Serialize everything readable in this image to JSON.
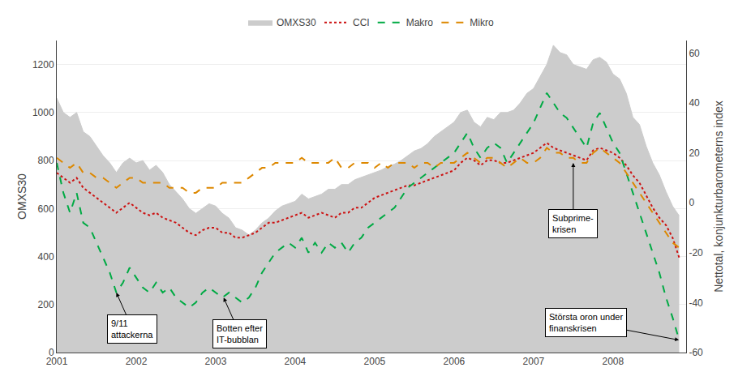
{
  "chart_data": {
    "type": "line",
    "x": [
      2001.0,
      2001.083,
      2001.167,
      2001.25,
      2001.333,
      2001.417,
      2001.5,
      2001.583,
      2001.667,
      2001.75,
      2001.833,
      2001.917,
      2002.0,
      2002.083,
      2002.167,
      2002.25,
      2002.333,
      2002.417,
      2002.5,
      2002.583,
      2002.667,
      2002.75,
      2002.833,
      2002.917,
      2003.0,
      2003.083,
      2003.167,
      2003.25,
      2003.333,
      2003.417,
      2003.5,
      2003.583,
      2003.667,
      2003.75,
      2003.833,
      2003.917,
      2004.0,
      2004.083,
      2004.167,
      2004.25,
      2004.333,
      2004.417,
      2004.5,
      2004.583,
      2004.667,
      2004.75,
      2004.833,
      2004.917,
      2005.0,
      2005.083,
      2005.167,
      2005.25,
      2005.333,
      2005.417,
      2005.5,
      2005.583,
      2005.667,
      2005.75,
      2005.833,
      2005.917,
      2006.0,
      2006.083,
      2006.167,
      2006.25,
      2006.333,
      2006.417,
      2006.5,
      2006.583,
      2006.667,
      2006.75,
      2006.833,
      2006.917,
      2007.0,
      2007.083,
      2007.167,
      2007.25,
      2007.333,
      2007.417,
      2007.5,
      2007.583,
      2007.667,
      2007.75,
      2007.833,
      2007.917,
      2008.0,
      2008.083,
      2008.167,
      2008.25,
      2008.333,
      2008.417,
      2008.5,
      2008.583,
      2008.667,
      2008.75,
      2008.833
    ],
    "series": [
      {
        "name": "OMXS30",
        "type": "area",
        "color": "#cccccc",
        "values": [
          1060,
          1000,
          980,
          1000,
          920,
          900,
          860,
          820,
          790,
          750,
          790,
          810,
          790,
          800,
          760,
          780,
          750,
          700,
          670,
          640,
          600,
          580,
          600,
          620,
          610,
          580,
          560,
          520,
          510,
          490,
          510,
          540,
          560,
          590,
          610,
          620,
          630,
          660,
          640,
          650,
          660,
          680,
          680,
          700,
          700,
          720,
          730,
          740,
          750,
          760,
          775,
          785,
          800,
          820,
          840,
          850,
          870,
          900,
          920,
          940,
          960,
          1000,
          1010,
          960,
          940,
          980,
          970,
          1000,
          1000,
          1010,
          1040,
          1080,
          1100,
          1150,
          1200,
          1280,
          1250,
          1240,
          1200,
          1190,
          1180,
          1220,
          1230,
          1210,
          1160,
          1140,
          1080,
          980,
          950,
          860,
          790,
          740,
          670,
          610,
          570
        ]
      },
      {
        "name": "CCI",
        "type": "line",
        "color": "#cc1111",
        "line_style": "dotted",
        "axis": "y2",
        "values": [
          12,
          10,
          8,
          10,
          6,
          4,
          2,
          0,
          -2,
          -4,
          -2,
          0,
          -2,
          -4,
          -5,
          -4,
          -6,
          -7,
          -8,
          -10,
          -12,
          -13,
          -11,
          -10,
          -10,
          -12,
          -12,
          -14,
          -14,
          -13,
          -12,
          -10,
          -8,
          -8,
          -7,
          -6,
          -5,
          -4,
          -6,
          -5,
          -4,
          -5,
          -6,
          -4,
          -4,
          -2,
          -2,
          0,
          2,
          3,
          4,
          5,
          6,
          7,
          7,
          8,
          9,
          10,
          11,
          12,
          13,
          16,
          18,
          17,
          15,
          17,
          17,
          16,
          16,
          17,
          18,
          19,
          20,
          22,
          24,
          22,
          21,
          20,
          19,
          18,
          17,
          21,
          22,
          21,
          20,
          18,
          15,
          11,
          8,
          3,
          -2,
          -6,
          -9,
          -14,
          -22
        ]
      },
      {
        "name": "Makro",
        "type": "line",
        "color": "#00aa44",
        "line_style": "dashed",
        "axis": "y2",
        "values": [
          16,
          4,
          -4,
          4,
          -8,
          -10,
          -16,
          -22,
          -28,
          -36,
          -32,
          -26,
          -30,
          -34,
          -36,
          -32,
          -36,
          -34,
          -38,
          -40,
          -42,
          -40,
          -36,
          -34,
          -36,
          -38,
          -36,
          -38,
          -40,
          -38,
          -34,
          -28,
          -24,
          -20,
          -18,
          -16,
          -18,
          -14,
          -20,
          -16,
          -20,
          -16,
          -18,
          -16,
          -20,
          -16,
          -14,
          -10,
          -8,
          -6,
          -4,
          -2,
          2,
          6,
          8,
          10,
          12,
          14,
          16,
          18,
          20,
          24,
          28,
          22,
          18,
          22,
          24,
          22,
          16,
          20,
          24,
          28,
          32,
          38,
          44,
          40,
          36,
          34,
          30,
          26,
          22,
          32,
          36,
          30,
          24,
          20,
          12,
          4,
          -4,
          -12,
          -20,
          -28,
          -38,
          -46,
          -55
        ]
      },
      {
        "name": "Mikro",
        "type": "line",
        "color": "#dd8800",
        "line_style": "dashed",
        "axis": "y2",
        "values": [
          18,
          16,
          14,
          16,
          12,
          12,
          10,
          10,
          8,
          6,
          8,
          10,
          10,
          8,
          8,
          8,
          8,
          6,
          6,
          6,
          4,
          4,
          6,
          6,
          6,
          8,
          8,
          8,
          8,
          10,
          12,
          14,
          14,
          16,
          16,
          16,
          16,
          18,
          16,
          16,
          16,
          16,
          18,
          14,
          14,
          16,
          16,
          16,
          14,
          16,
          14,
          16,
          16,
          16,
          14,
          16,
          16,
          14,
          16,
          16,
          16,
          18,
          20,
          18,
          16,
          18,
          18,
          16,
          14,
          16,
          18,
          16,
          16,
          18,
          22,
          20,
          20,
          18,
          18,
          16,
          16,
          20,
          22,
          20,
          18,
          16,
          12,
          8,
          4,
          0,
          -4,
          -8,
          -12,
          -16,
          -18
        ]
      }
    ],
    "ylabel": "OMXS30",
    "y2label": "Nettotal, konjunkturbarometerns index",
    "xlim": [
      2001.0,
      2008.92
    ],
    "xticks": [
      2001,
      2002,
      2003,
      2004,
      2005,
      2006,
      2007,
      2008
    ],
    "ylim": [
      0,
      1300
    ],
    "yticks": [
      0,
      200,
      400,
      600,
      800,
      1000,
      1200
    ],
    "y2lim": [
      -60,
      65
    ],
    "y2ticks": [
      -60,
      -40,
      -20,
      0,
      20,
      40,
      60
    ],
    "grid": true,
    "legend": "top",
    "annotations": [
      {
        "text": "9/11\nattackerna",
        "x": 2001.75,
        "y": -36,
        "axis": "y2"
      },
      {
        "text": "Botten efter\nIT-bubblan",
        "x": 2003.1,
        "y": -38,
        "axis": "y2"
      },
      {
        "text": "Subprime-\nkrisen",
        "x": 2007.5,
        "y": 16,
        "axis": "y2"
      },
      {
        "text": "Största oron under\nfinanskrisen",
        "x": 2008.83,
        "y": -55,
        "axis": "y2"
      }
    ]
  }
}
